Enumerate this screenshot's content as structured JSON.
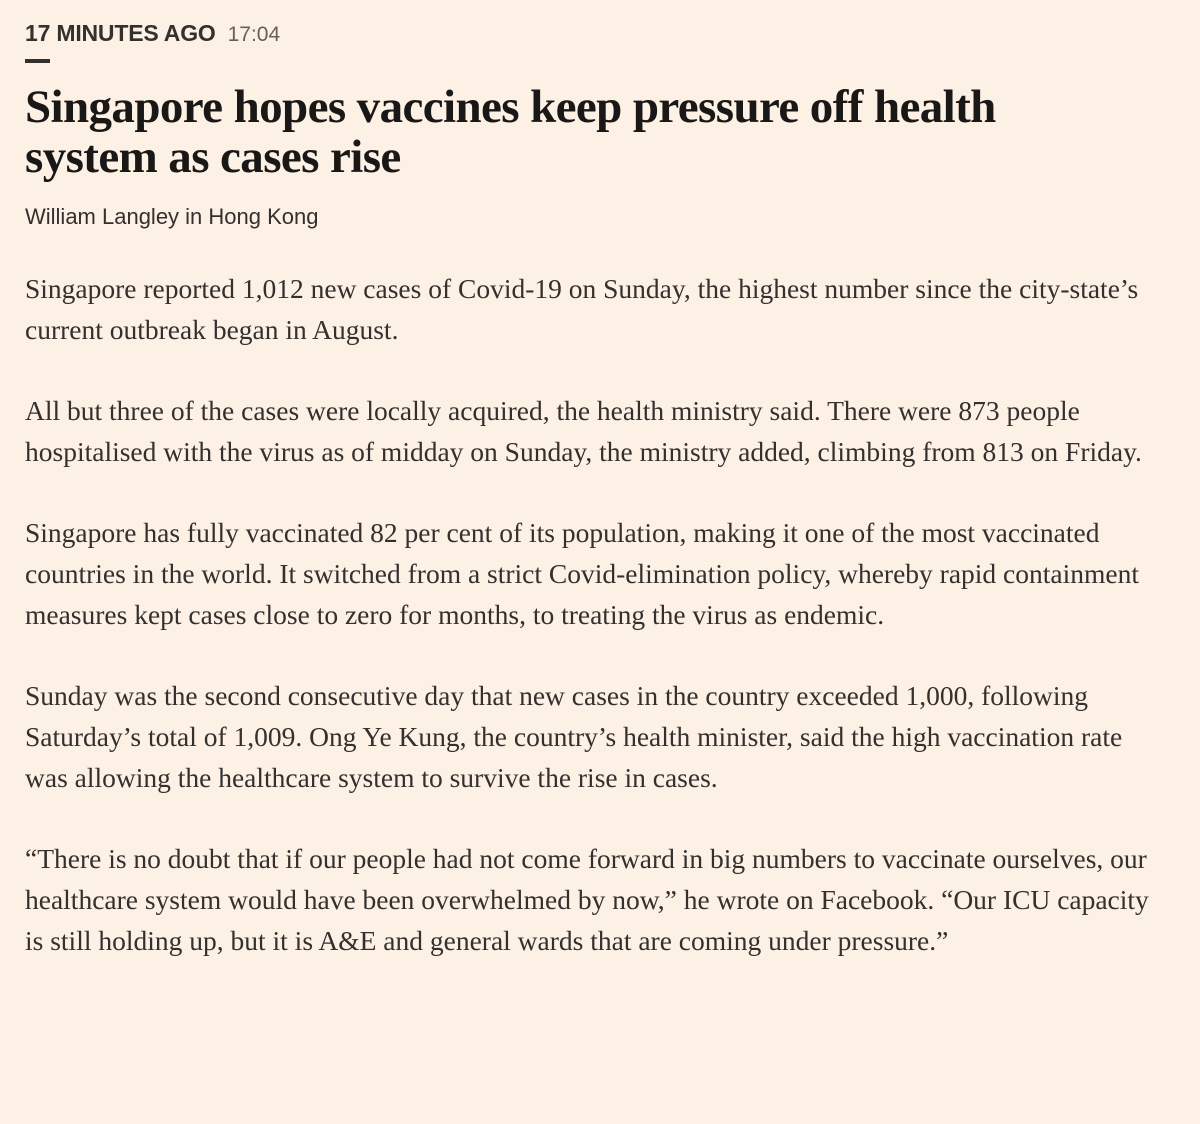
{
  "meta": {
    "label": "17 MINUTES AGO",
    "time": "17:04"
  },
  "article": {
    "headline": "Singapore hopes vaccines keep pressure off health system as cases rise",
    "byline": "William Langley in Hong Kong",
    "paragraphs": [
      "Singapore reported 1,012 new cases of Covid-19 on Sunday, the highest number since the city-state’s current outbreak began in August.",
      "All but three of the cases were locally acquired, the health ministry said. There were 873 people hospitalised with the virus as of midday on Sunday, the ministry added, climbing from 813 on Friday.",
      "Singapore has fully vaccinated 82 per cent of its population, making it one of the most vaccinated countries in the world. It switched from a strict Covid-elimination policy, whereby rapid containment measures kept cases close to zero for months, to treating the virus as endemic.",
      "Sunday was the second consecutive day that new cases in the country exceeded 1,000, following Saturday’s total of 1,009. Ong Ye Kung, the country’s health minister, said the high vaccination rate was allowing the healthcare system to survive the rise in cases.",
      "“There is no doubt that if our people had not come forward in big numbers to vaccinate ourselves, our healthcare system would have been overwhelmed by now,” he wrote on Facebook. “Our ICU capacity is still holding up, but it is A&E and general wards that are coming under pressure.”"
    ]
  },
  "colors": {
    "background": "#fdf1e6",
    "text": "#33302e",
    "headline": "#1a1817",
    "muted": "#66605c"
  }
}
